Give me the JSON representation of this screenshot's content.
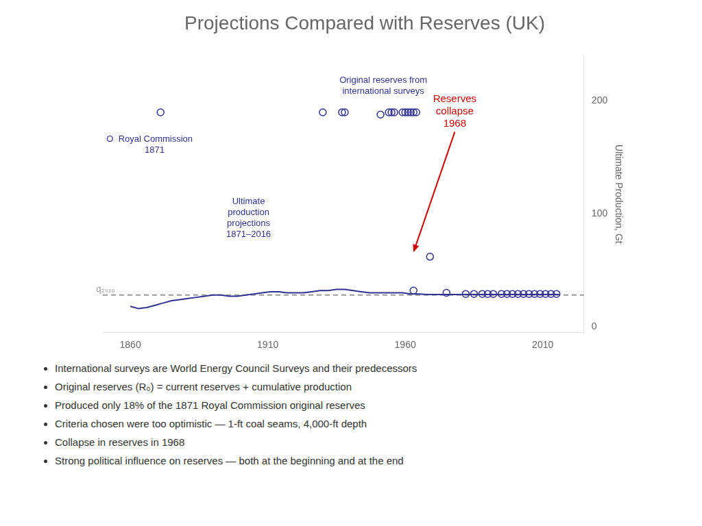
{
  "chart_data": {
    "type": "line",
    "title": "Projections Compared with Reserves (UK)",
    "ylabel": "Ultimate Production, Gt",
    "xlim": [
      1850,
      2025
    ],
    "xticks": [
      1860,
      1910,
      1960,
      2010
    ],
    "ylim": [
      -5,
      240
    ],
    "yticks": [
      0,
      100,
      200
    ],
    "grid": false,
    "series": [
      {
        "type": "line",
        "color": "#2E3192",
        "marker": "none",
        "line_style": "solid",
        "x": [
          1860,
          1863,
          1866,
          1869,
          1872,
          1875,
          1878,
          1881,
          1884,
          1887,
          1890,
          1893,
          1896,
          1899,
          1902,
          1905,
          1908,
          1911,
          1914,
          1917,
          1920,
          1923,
          1926,
          1929,
          1932,
          1935,
          1938,
          1941,
          1944,
          1947,
          1950,
          1953,
          1956,
          1959,
          1962,
          1965,
          1968,
          1971,
          1974,
          1977,
          1980,
          1985,
          1990,
          1995,
          2000,
          2005,
          2010,
          2016
        ],
        "values": [
          18,
          16,
          17,
          19,
          21,
          23,
          24,
          25,
          26,
          27,
          28,
          28,
          27,
          27,
          28,
          29,
          30,
          31,
          31,
          30,
          30,
          30,
          31,
          32,
          32,
          33,
          33,
          32,
          31,
          30,
          30,
          30,
          30,
          30,
          29,
          29,
          28.5,
          28.5,
          28.5,
          28.5,
          28.5,
          28.5,
          28.5,
          28.5,
          28.5,
          28.5,
          28.5,
          28.5
        ]
      },
      {
        "type": "line",
        "color": "#999999",
        "marker": "none",
        "line_style": "dashed",
        "x": [
          1850,
          2025
        ],
        "values": [
          28,
          28
        ]
      },
      {
        "type": "scatter",
        "color": "#2E3192",
        "marker": "circle",
        "x": [
          1930,
          1937,
          1938,
          1951,
          1954,
          1955,
          1956,
          1959,
          1960,
          1961,
          1962,
          1963,
          1964
        ],
        "values": [
          190,
          190,
          190,
          188,
          190,
          190,
          190,
          190,
          190,
          190,
          190,
          190,
          190
        ]
      },
      {
        "type": "scatter",
        "color": "#2E3192",
        "marker": "circle",
        "x": [
          1969
        ],
        "values": [
          62
        ]
      },
      {
        "type": "scatter",
        "color": "#2E3192",
        "marker": "circle",
        "x": [
          1963,
          1975,
          1982,
          1985,
          1988,
          1990,
          1992,
          1995,
          1997,
          1999,
          2001,
          2003,
          2005,
          2007,
          2009,
          2011,
          2013,
          2015
        ],
        "values": [
          32,
          30,
          29,
          29,
          29,
          29,
          29,
          29,
          29,
          29,
          29,
          29,
          29,
          29,
          29,
          29,
          29,
          29
        ]
      },
      {
        "type": "scatter",
        "color": "#2E3192",
        "marker": "circle",
        "x": [
          1871
        ],
        "values": [
          190
        ]
      }
    ],
    "annotations": [
      {
        "text": "Original reserves from\ninternational surveys",
        "x": 1952,
        "y": 222,
        "color": "#2E3192"
      },
      {
        "text": "O  Royal Commission\n    1871",
        "x": 1867,
        "y": 170,
        "color": "#2E3192"
      },
      {
        "text": "Ultimate\nproduction\nprojections\n1871–2016",
        "x": 1903,
        "y": 115,
        "color": "#2E3192"
      },
      {
        "text": "q₂₀₁₆",
        "x": 1851,
        "y": 29,
        "color": "#999999"
      },
      {
        "text": "Reserves\ncollapse\n1968",
        "x": 1978,
        "y": 175,
        "arrow_x": 1963,
        "arrow_y": 66,
        "color": "#cc0000"
      }
    ],
    "bullets": [
      "International surveys are World Energy Council Surveys and their predecessors",
      "Original reserves (R₀) = current reserves + cumulative production",
      "Produced only 18% of the 1871 Royal Commission original reserves",
      "Criteria chosen were too optimistic — 1-ft coal seams, 4,000-ft depth",
      "Collapse in reserves in 1968",
      "Strong political influence on reserves — both at the beginning and at the end"
    ]
  }
}
